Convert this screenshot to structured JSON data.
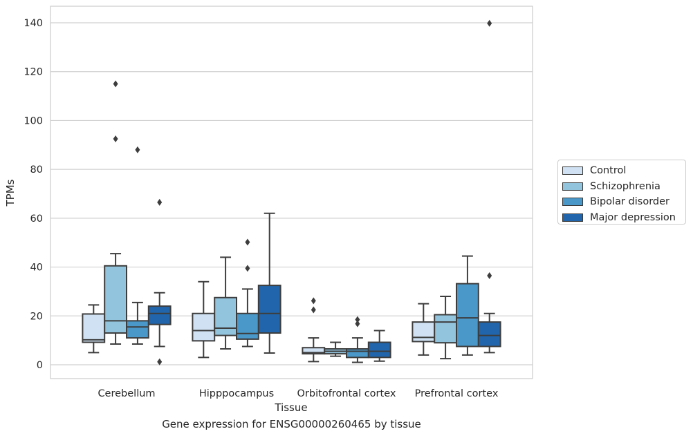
{
  "chart_data": {
    "type": "box",
    "title": "Gene expression for ENSG00000260465 by tissue",
    "xlabel": "Tissue",
    "ylabel": "TPMs",
    "ylim": [
      -6,
      147
    ],
    "yticks": [
      0,
      20,
      40,
      60,
      80,
      100,
      120,
      140
    ],
    "grid": "horizontal",
    "legend_position": "right",
    "categories": [
      "Cerebellum",
      "Hipppocampus",
      "Orbitofrontal cortex",
      "Prefrontal cortex"
    ],
    "series": [
      {
        "name": "Control",
        "color": "#cfe1f2",
        "boxes": [
          {
            "whislo": 5,
            "q1": 9.2,
            "med": 10.2,
            "q3": 20.8,
            "whishi": 24.5,
            "fliers": []
          },
          {
            "whislo": 3,
            "q1": 9.8,
            "med": 14,
            "q3": 21,
            "whishi": 34,
            "fliers": []
          },
          {
            "whislo": 1.3,
            "q1": 4.5,
            "med": 5,
            "q3": 7,
            "whishi": 11,
            "fliers": [
              22.5,
              26.2
            ]
          },
          {
            "whislo": 4,
            "q1": 9.5,
            "med": 11.2,
            "q3": 17.5,
            "whishi": 25,
            "fliers": []
          }
        ]
      },
      {
        "name": "Schizophrenia",
        "color": "#93c4de",
        "boxes": [
          {
            "whislo": 8.5,
            "q1": 13,
            "med": 18,
            "q3": 40.5,
            "whishi": 45.5,
            "fliers": [
              92.5,
              115
            ]
          },
          {
            "whislo": 6.5,
            "q1": 12,
            "med": 15,
            "q3": 27.5,
            "whishi": 44,
            "fliers": []
          },
          {
            "whislo": 3.5,
            "q1": 4.5,
            "med": 5.5,
            "q3": 6.5,
            "whishi": 9.2,
            "fliers": []
          },
          {
            "whislo": 2.5,
            "q1": 9,
            "med": 17.5,
            "q3": 20.5,
            "whishi": 28,
            "fliers": []
          }
        ]
      },
      {
        "name": "Bipolar disorder",
        "color": "#4a98c9",
        "boxes": [
          {
            "whislo": 8.5,
            "q1": 11,
            "med": 15.5,
            "q3": 18,
            "whishi": 25.5,
            "fliers": [
              88
            ]
          },
          {
            "whislo": 7.5,
            "q1": 10.5,
            "med": 12.8,
            "q3": 21,
            "whishi": 31,
            "fliers": [
              39.5,
              50.2
            ]
          },
          {
            "whislo": 1,
            "q1": 3,
            "med": 5.5,
            "q3": 6.5,
            "whishi": 11,
            "fliers": [
              16.8,
              18.5
            ]
          },
          {
            "whislo": 4,
            "q1": 7.5,
            "med": 19.2,
            "q3": 33.2,
            "whishi": 44.5,
            "fliers": []
          }
        ]
      },
      {
        "name": "Major depression",
        "color": "#2166ac",
        "boxes": [
          {
            "whislo": 7.5,
            "q1": 16.5,
            "med": 21,
            "q3": 24,
            "whishi": 29.5,
            "fliers": [
              1.2,
              66.5
            ]
          },
          {
            "whislo": 4.8,
            "q1": 13,
            "med": 21,
            "q3": 32.5,
            "whishi": 62,
            "fliers": []
          },
          {
            "whislo": 1.5,
            "q1": 3,
            "med": 5.5,
            "q3": 9.2,
            "whishi": 14,
            "fliers": []
          },
          {
            "whislo": 5,
            "q1": 7.5,
            "med": 12,
            "q3": 17.5,
            "whishi": 21,
            "fliers": [
              36.5,
              139.8
            ]
          }
        ]
      }
    ]
  }
}
